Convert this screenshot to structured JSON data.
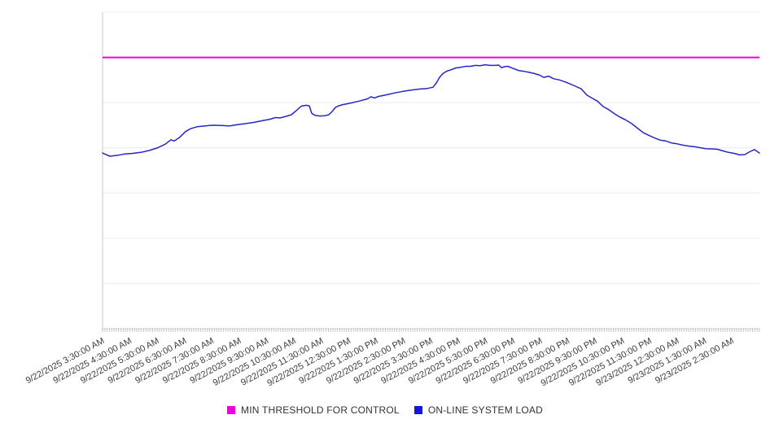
{
  "chart_data": {
    "type": "line",
    "title": "",
    "x_axis": {
      "tick_labels": [
        "9/22/2025 3:30:00 AM",
        "9/22/2025 4:30:00 AM",
        "9/22/2025 5:30:00 AM",
        "9/22/2025 6:30:00 AM",
        "9/22/2025 7:30:00 AM",
        "9/22/2025 8:30:00 AM",
        "9/22/2025 9:30:00 AM",
        "9/22/2025 10:30:00 AM",
        "9/22/2025 11:30:00 AM",
        "9/22/2025 12:30:00 PM",
        "9/22/2025 1:30:00 PM",
        "9/22/2025 2:30:00 PM",
        "9/22/2025 3:30:00 PM",
        "9/22/2025 4:30:00 PM",
        "9/22/2025 5:30:00 PM",
        "9/22/2025 6:30:00 PM",
        "9/22/2025 7:30:00 PM",
        "9/22/2025 8:30:00 PM",
        "9/22/2025 9:30:00 PM",
        "9/22/2025 10:30:00 PM",
        "9/22/2025 11:30:00 PM",
        "9/23/2025 12:30:00 AM",
        "9/23/2025 1:30:00 AM",
        "9/23/2025 2:30:00 AM"
      ],
      "hours_span": 24,
      "minor_tick_count": 288,
      "label_rotation_deg": -28
    },
    "y_axis": {
      "labels_visible": false,
      "gridline_divisions": 7,
      "scale_note": "relative load, 0 = plot bottom, 100 = plot top (no numeric labels shown)",
      "range": [
        0,
        100
      ]
    },
    "legend_position": "bottom-center",
    "series": [
      {
        "name": "MIN THRESHOLD FOR CONTROL",
        "type": "threshold",
        "color": "#ee00dd",
        "value": 85.7
      },
      {
        "name": "ON-LINE SYSTEM LOAD",
        "type": "line",
        "color": "#2727c4",
        "points": [
          [
            0.0,
            55.5
          ],
          [
            0.0112,
            54.5
          ],
          [
            0.0235,
            54.8
          ],
          [
            0.0335,
            55.2
          ],
          [
            0.0459,
            55.4
          ],
          [
            0.0582,
            55.7
          ],
          [
            0.0706,
            56.3
          ],
          [
            0.083,
            57.1
          ],
          [
            0.0954,
            58.3
          ],
          [
            0.1041,
            59.7
          ],
          [
            0.109,
            59.3
          ],
          [
            0.1165,
            60.3
          ],
          [
            0.1264,
            62.3
          ],
          [
            0.1338,
            63.2
          ],
          [
            0.1437,
            63.8
          ],
          [
            0.1561,
            64.1
          ],
          [
            0.1685,
            64.3
          ],
          [
            0.1809,
            64.2
          ],
          [
            0.1933,
            64.1
          ],
          [
            0.2057,
            64.5
          ],
          [
            0.2181,
            64.8
          ],
          [
            0.2305,
            65.2
          ],
          [
            0.2429,
            65.7
          ],
          [
            0.2553,
            66.2
          ],
          [
            0.2627,
            66.7
          ],
          [
            0.2701,
            66.6
          ],
          [
            0.2776,
            67.0
          ],
          [
            0.2875,
            67.6
          ],
          [
            0.2949,
            68.9
          ],
          [
            0.3024,
            70.3
          ],
          [
            0.3098,
            70.6
          ],
          [
            0.3147,
            70.4
          ],
          [
            0.3184,
            68.1
          ],
          [
            0.3234,
            67.4
          ],
          [
            0.3308,
            67.2
          ],
          [
            0.3383,
            67.3
          ],
          [
            0.3445,
            67.6
          ],
          [
            0.3494,
            68.6
          ],
          [
            0.3544,
            69.9
          ],
          [
            0.3593,
            70.4
          ],
          [
            0.3655,
            70.8
          ],
          [
            0.3779,
            71.3
          ],
          [
            0.3903,
            71.9
          ],
          [
            0.4027,
            72.6
          ],
          [
            0.4089,
            73.3
          ],
          [
            0.4139,
            72.9
          ],
          [
            0.4201,
            73.4
          ],
          [
            0.4325,
            73.9
          ],
          [
            0.4449,
            74.5
          ],
          [
            0.4572,
            75.0
          ],
          [
            0.4696,
            75.4
          ],
          [
            0.482,
            75.7
          ],
          [
            0.4944,
            75.9
          ],
          [
            0.5031,
            76.3
          ],
          [
            0.5081,
            77.6
          ],
          [
            0.513,
            79.4
          ],
          [
            0.518,
            80.6
          ],
          [
            0.5242,
            81.4
          ],
          [
            0.5304,
            81.8
          ],
          [
            0.5378,
            82.4
          ],
          [
            0.5452,
            82.6
          ],
          [
            0.5527,
            82.9
          ],
          [
            0.5601,
            82.9
          ],
          [
            0.5675,
            83.2
          ],
          [
            0.5749,
            83.1
          ],
          [
            0.5824,
            83.4
          ],
          [
            0.5898,
            83.2
          ],
          [
            0.5972,
            83.2
          ],
          [
            0.6034,
            83.3
          ],
          [
            0.6072,
            82.5
          ],
          [
            0.6121,
            82.8
          ],
          [
            0.6171,
            82.9
          ],
          [
            0.6245,
            82.3
          ],
          [
            0.6332,
            81.6
          ],
          [
            0.6419,
            81.3
          ],
          [
            0.6493,
            81.0
          ],
          [
            0.658,
            80.6
          ],
          [
            0.6654,
            80.1
          ],
          [
            0.6716,
            79.4
          ],
          [
            0.679,
            79.8
          ],
          [
            0.6865,
            79.0
          ],
          [
            0.6951,
            78.6
          ],
          [
            0.7038,
            78.0
          ],
          [
            0.7112,
            77.4
          ],
          [
            0.7199,
            76.6
          ],
          [
            0.7286,
            75.8
          ],
          [
            0.7373,
            73.8
          ],
          [
            0.7447,
            72.9
          ],
          [
            0.7534,
            71.9
          ],
          [
            0.7621,
            70.2
          ],
          [
            0.7707,
            69.2
          ],
          [
            0.7794,
            67.9
          ],
          [
            0.7881,
            66.8
          ],
          [
            0.7968,
            65.9
          ],
          [
            0.8055,
            64.8
          ],
          [
            0.8141,
            63.4
          ],
          [
            0.8228,
            62.0
          ],
          [
            0.8315,
            61.1
          ],
          [
            0.8402,
            60.3
          ],
          [
            0.8488,
            59.6
          ],
          [
            0.8575,
            59.3
          ],
          [
            0.8662,
            58.7
          ],
          [
            0.8748,
            58.4
          ],
          [
            0.8835,
            58.0
          ],
          [
            0.8922,
            57.7
          ],
          [
            0.9009,
            57.5
          ],
          [
            0.9096,
            57.2
          ],
          [
            0.9182,
            56.9
          ],
          [
            0.9269,
            56.8
          ],
          [
            0.9356,
            56.7
          ],
          [
            0.9442,
            56.2
          ],
          [
            0.9529,
            55.7
          ],
          [
            0.9616,
            55.4
          ],
          [
            0.9703,
            54.9
          ],
          [
            0.9777,
            55.0
          ],
          [
            0.9851,
            55.9
          ],
          [
            0.9926,
            56.6
          ],
          [
            1.0,
            55.5
          ]
        ]
      }
    ]
  },
  "legend": {
    "items": [
      {
        "label": "MIN THRESHOLD FOR CONTROL",
        "color": "#ee00dd"
      },
      {
        "label": "ON-LINE SYSTEM LOAD",
        "color": "#1515dd"
      }
    ]
  }
}
